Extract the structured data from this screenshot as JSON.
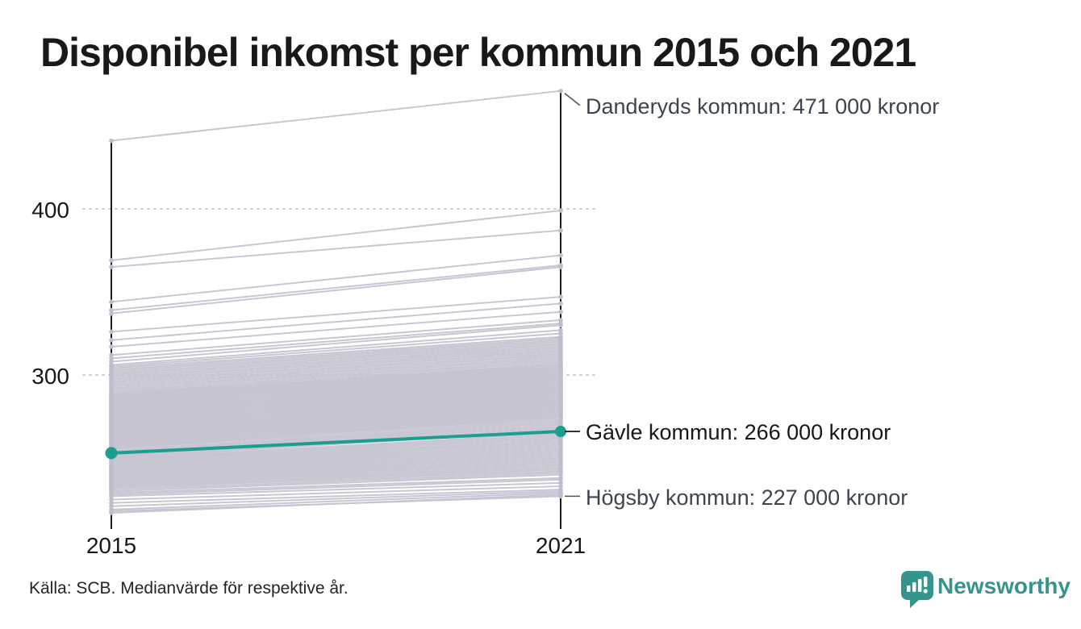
{
  "title": "Disponibel inkomst per kommun 2015 och 2021",
  "source_note": "Källa: SCB. Medianvärde för respektive år.",
  "branding": {
    "wordmark": "Newsworthy"
  },
  "colors": {
    "accent": "#1b9e8d",
    "line": "#c7c4d2",
    "dot": "#bfbccc",
    "axis": "#1a1a1a",
    "grid": "#cfccd6",
    "leader": "#555555",
    "logo": "#35948b"
  },
  "chart_data": {
    "type": "line",
    "subtype": "slope",
    "title": "Disponibel inkomst per kommun 2015 och 2021",
    "x_tick_labels": [
      "2015",
      "2021"
    ],
    "y_ticks": [
      400,
      300
    ],
    "y_tick_labels": [
      "400",
      "300"
    ],
    "ylim": [
      215,
      480
    ],
    "grid": "dotted-horizontal",
    "legend": "none",
    "annotations": [
      {
        "municipality": "Danderyds kommun",
        "label": "Danderyds kommun: 471 000 kronor",
        "values": [
          441,
          471
        ]
      },
      {
        "municipality": "Gävle kommun",
        "label": "Gävle kommun: 266 000 kronor",
        "values": [
          253,
          266
        ],
        "highlighted": true
      },
      {
        "municipality": "Högsby kommun",
        "label": "Högsby kommun: 227 000 kronor",
        "values": [
          218,
          227
        ]
      }
    ],
    "highlight": {
      "name": "Gävle kommun",
      "pair": [
        253,
        266
      ]
    },
    "series": [
      {
        "name": "kommuner",
        "pairs": [
          [
            441,
            471
          ],
          [
            369,
            399
          ],
          [
            365,
            387
          ],
          [
            344,
            372
          ],
          [
            339,
            366
          ],
          [
            337,
            365
          ],
          [
            326,
            347
          ],
          [
            321,
            343
          ],
          [
            317,
            338
          ],
          [
            312,
            333
          ],
          [
            310,
            331
          ],
          [
            308,
            330
          ],
          [
            306,
            327
          ],
          [
            305,
            325
          ],
          [
            304,
            323
          ],
          [
            303,
            322
          ],
          [
            302,
            321
          ],
          [
            301,
            320
          ],
          [
            300,
            319
          ],
          [
            299,
            318
          ],
          [
            298,
            317
          ],
          [
            297,
            316
          ],
          [
            296,
            315
          ],
          [
            295,
            314
          ],
          [
            294,
            313
          ],
          [
            293,
            312
          ],
          [
            292,
            311
          ],
          [
            291,
            310
          ],
          [
            290,
            309
          ],
          [
            289,
            308
          ],
          [
            288.5,
            306
          ],
          [
            288,
            307
          ],
          [
            287.5,
            305
          ],
          [
            287,
            306
          ],
          [
            286.5,
            304
          ],
          [
            286,
            305
          ],
          [
            285.5,
            303
          ],
          [
            285,
            304
          ],
          [
            284.5,
            302
          ],
          [
            284,
            303
          ],
          [
            283.5,
            301
          ],
          [
            283,
            302
          ],
          [
            282.5,
            300
          ],
          [
            282,
            301
          ],
          [
            281.5,
            299
          ],
          [
            281,
            300
          ],
          [
            280.5,
            298
          ],
          [
            280,
            299
          ],
          [
            279.5,
            297
          ],
          [
            279,
            298
          ],
          [
            278.5,
            296
          ],
          [
            278,
            297
          ],
          [
            277.5,
            295
          ],
          [
            277,
            296
          ],
          [
            276.5,
            294
          ],
          [
            276,
            295
          ],
          [
            275.5,
            293
          ],
          [
            275,
            294
          ],
          [
            274.5,
            292
          ],
          [
            274,
            293
          ],
          [
            273.5,
            291
          ],
          [
            273,
            292
          ],
          [
            272.5,
            290
          ],
          [
            272,
            291
          ],
          [
            271.5,
            289
          ],
          [
            271,
            290
          ],
          [
            270.5,
            288
          ],
          [
            270,
            289
          ],
          [
            269.5,
            287
          ],
          [
            269,
            288
          ],
          [
            268.5,
            286
          ],
          [
            268,
            287
          ],
          [
            267.5,
            285
          ],
          [
            267,
            286
          ],
          [
            266.5,
            284
          ],
          [
            266,
            285
          ],
          [
            265.5,
            283
          ],
          [
            265,
            284
          ],
          [
            264.5,
            282
          ],
          [
            264,
            283
          ],
          [
            263.5,
            281
          ],
          [
            263,
            282
          ],
          [
            262.5,
            280
          ],
          [
            262,
            281
          ],
          [
            261.5,
            279
          ],
          [
            261,
            280
          ],
          [
            260.5,
            278
          ],
          [
            260,
            279
          ],
          [
            259.5,
            277
          ],
          [
            259,
            278
          ],
          [
            258.5,
            276
          ],
          [
            258,
            277
          ],
          [
            257.5,
            275
          ],
          [
            257,
            276
          ],
          [
            256.5,
            274
          ],
          [
            256,
            275
          ],
          [
            255.5,
            273
          ],
          [
            254.5,
            272
          ],
          [
            253.8,
            271
          ],
          [
            253,
            270
          ],
          [
            252.2,
            269
          ],
          [
            251.5,
            268
          ],
          [
            250.8,
            267
          ],
          [
            250,
            266.5
          ],
          [
            249.2,
            265
          ],
          [
            248.5,
            264
          ],
          [
            247.8,
            263
          ],
          [
            247,
            262
          ],
          [
            246.2,
            261
          ],
          [
            245.5,
            260
          ],
          [
            244.8,
            259
          ],
          [
            244,
            258
          ],
          [
            243.2,
            257
          ],
          [
            242.5,
            256
          ],
          [
            241.8,
            255
          ],
          [
            241,
            254
          ],
          [
            240.2,
            253
          ],
          [
            239.5,
            252
          ],
          [
            238.8,
            251
          ],
          [
            238,
            250
          ],
          [
            237.2,
            249
          ],
          [
            236.5,
            248
          ],
          [
            235.8,
            247
          ],
          [
            235,
            246
          ],
          [
            234.2,
            245
          ],
          [
            233.5,
            244
          ],
          [
            232.8,
            243
          ],
          [
            232,
            242
          ],
          [
            231,
            241
          ],
          [
            230,
            240
          ],
          [
            229,
            238
          ],
          [
            228,
            237
          ],
          [
            227,
            235
          ],
          [
            225,
            233
          ],
          [
            223,
            231
          ],
          [
            221,
            230
          ],
          [
            219,
            229
          ],
          [
            217,
            228
          ],
          [
            218,
            227
          ]
        ]
      }
    ]
  }
}
